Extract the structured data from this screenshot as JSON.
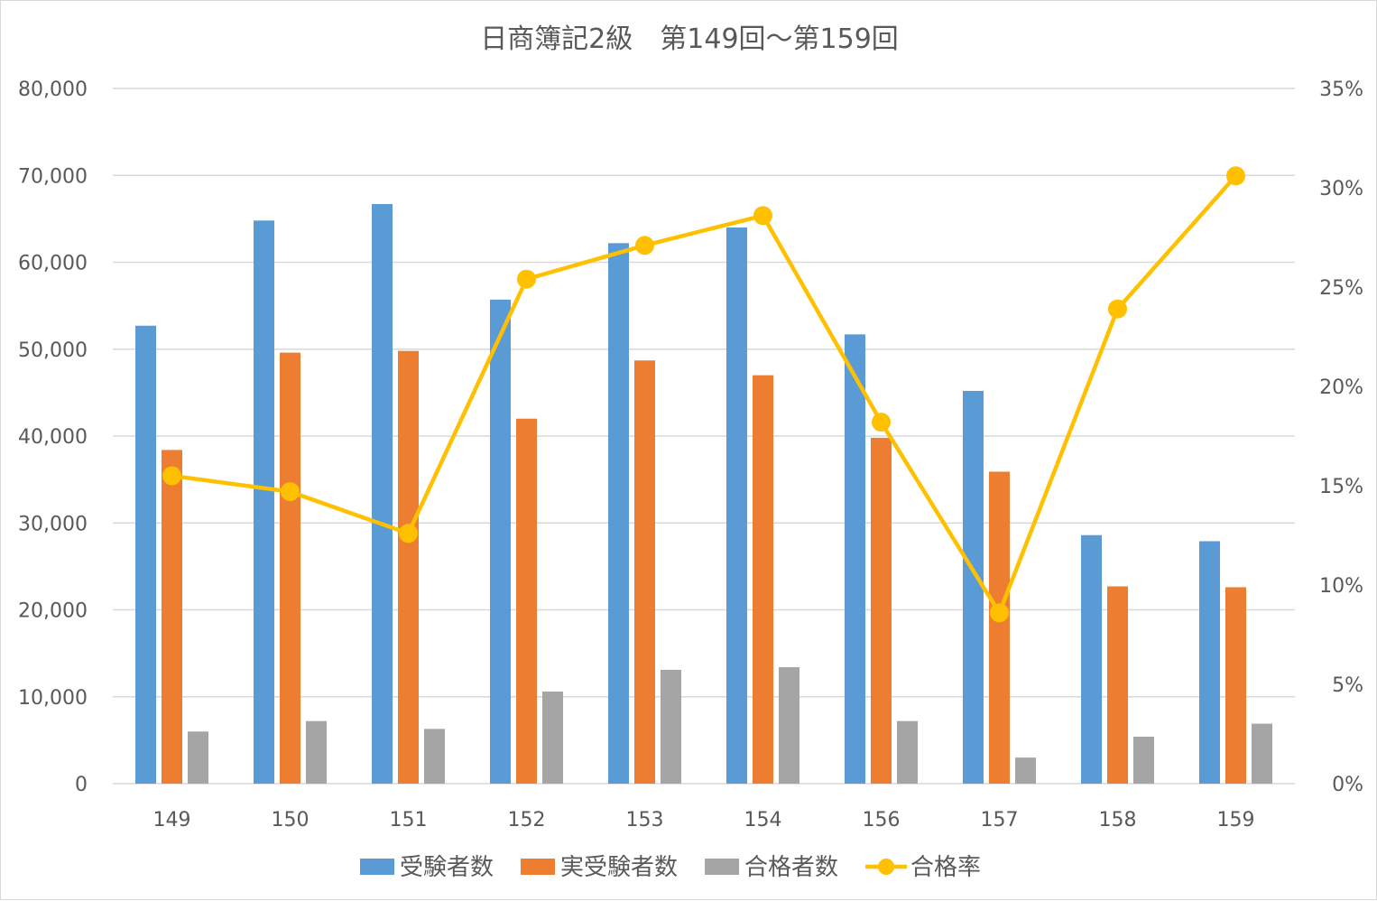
{
  "chart_data": {
    "type": "bar",
    "title": "日商簿記2級　第149回～第159回",
    "categories": [
      "149",
      "150",
      "151",
      "152",
      "153",
      "154",
      "156",
      "157",
      "158",
      "159"
    ],
    "y_left": {
      "min": 0,
      "max": 80000,
      "step": 10000,
      "tick_labels": [
        "0",
        "10,000",
        "20,000",
        "30,000",
        "40,000",
        "50,000",
        "60,000",
        "70,000",
        "80,000"
      ]
    },
    "y_right": {
      "min": 0,
      "max": 0.35,
      "step": 0.05,
      "tick_labels": [
        "0%",
        "5%",
        "10%",
        "15%",
        "20%",
        "25%",
        "30%",
        "35%"
      ]
    },
    "gridlines": true,
    "legend_position": "bottom",
    "series": [
      {
        "name": "受験者数",
        "type": "bar",
        "axis": "left",
        "color": "#5B9BD5",
        "values": [
          52700,
          64800,
          66700,
          55700,
          62200,
          64000,
          51700,
          45200,
          28600,
          27900
        ]
      },
      {
        "name": "実受験者数",
        "type": "bar",
        "axis": "left",
        "color": "#ED7D31",
        "values": [
          38400,
          49600,
          49800,
          42000,
          48700,
          47000,
          39800,
          35900,
          22700,
          22600
        ]
      },
      {
        "name": "合格者数",
        "type": "bar",
        "axis": "left",
        "color": "#A5A5A5",
        "values": [
          6000,
          7200,
          6300,
          10600,
          13100,
          13400,
          7200,
          3000,
          5400,
          6900
        ]
      },
      {
        "name": "合格率",
        "type": "line",
        "axis": "right",
        "color": "#FFC000",
        "values": [
          0.155,
          0.147,
          0.126,
          0.254,
          0.271,
          0.286,
          0.182,
          0.086,
          0.239,
          0.306
        ]
      }
    ]
  }
}
